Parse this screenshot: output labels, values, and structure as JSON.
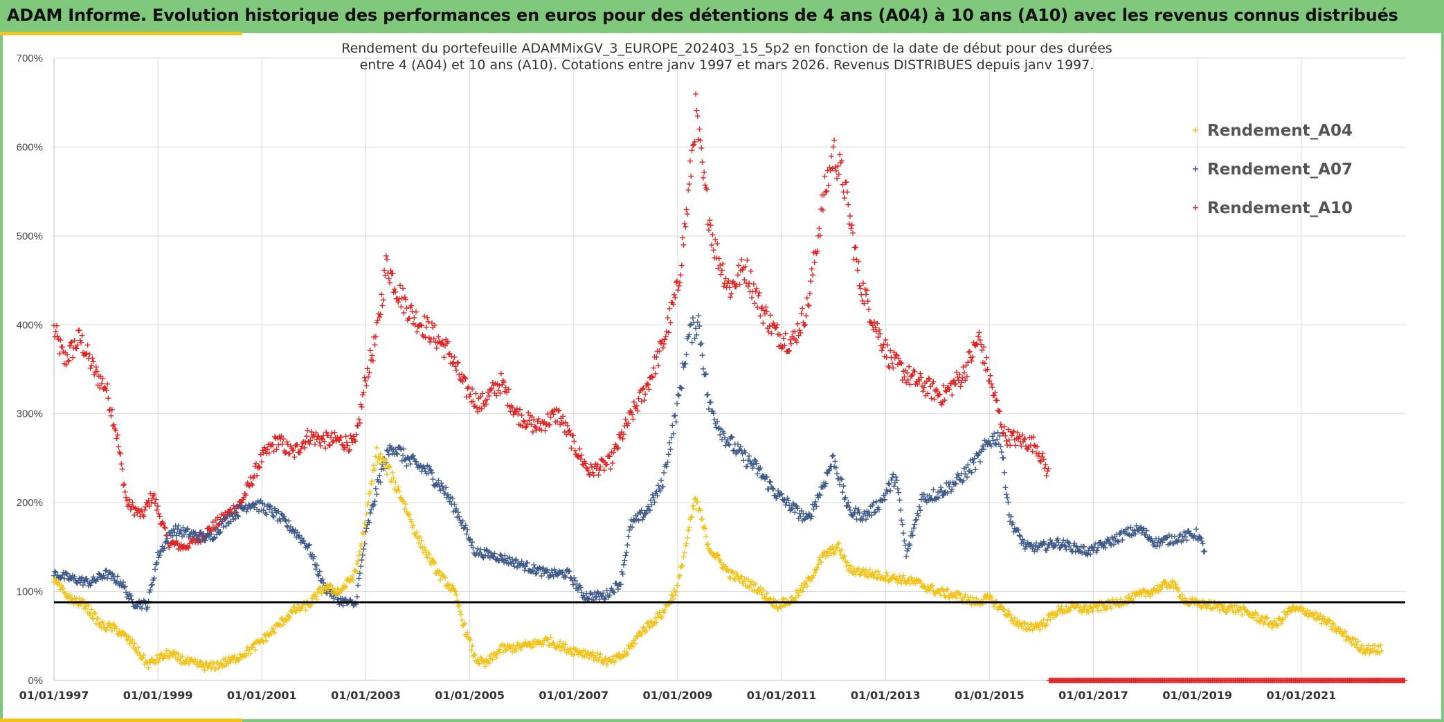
{
  "header": {
    "title": "ADAM Informe. Evolution historique des performances en euros pour des détentions de 4 ans (A04) à 10 ans (A10) avec les revenus connus distribués"
  },
  "chart_data": {
    "type": "scatter",
    "subtitle_line1": "Rendement du portefeuille ADAMMixGV_3_EUROPE_202403_15_5p2  en fonction de la date de début pour des durées",
    "subtitle_line2": "entre 4 (A04) et 10 ans (A10). Cotations entre janv 1997 et mars 2026. Revenus DISTRIBUES depuis janv 1997.",
    "x_ticks": [
      "01/01/1997",
      "01/01/1999",
      "01/01/2001",
      "01/01/2003",
      "01/01/2005",
      "01/01/2007",
      "01/01/2009",
      "01/01/2011",
      "01/01/2013",
      "01/01/2015",
      "01/01/2017",
      "01/01/2019",
      "01/01/2021"
    ],
    "x_range": [
      1997.0,
      2023.0
    ],
    "y_ticks": [
      "0%",
      "100%",
      "200%",
      "300%",
      "400%",
      "500%",
      "600%",
      "700%"
    ],
    "ylim": [
      0,
      700
    ],
    "reference_line_y": 88,
    "grid": "on",
    "legend_position": "top-right",
    "series": [
      {
        "name": "Rendement_A04",
        "color": "#f2c31b",
        "end_year": 2022.55,
        "points": [
          [
            1997.0,
            112
          ],
          [
            1997.3,
            92
          ],
          [
            1997.6,
            85
          ],
          [
            1997.9,
            62
          ],
          [
            1998.2,
            58
          ],
          [
            1998.5,
            42
          ],
          [
            1998.8,
            18
          ],
          [
            1999.2,
            30
          ],
          [
            1999.6,
            20
          ],
          [
            2000.0,
            15
          ],
          [
            2000.4,
            22
          ],
          [
            2000.8,
            35
          ],
          [
            2001.2,
            55
          ],
          [
            2001.6,
            78
          ],
          [
            2001.9,
            85
          ],
          [
            2002.2,
            105
          ],
          [
            2002.5,
            100
          ],
          [
            2002.8,
            120
          ],
          [
            2003.0,
            180
          ],
          [
            2003.2,
            255
          ],
          [
            2003.4,
            240
          ],
          [
            2003.7,
            205
          ],
          [
            2004.0,
            160
          ],
          [
            2004.4,
            120
          ],
          [
            2004.7,
            100
          ],
          [
            2004.9,
            60
          ],
          [
            2005.1,
            25
          ],
          [
            2005.3,
            18
          ],
          [
            2005.6,
            35
          ],
          [
            2006.0,
            38
          ],
          [
            2006.5,
            45
          ],
          [
            2006.9,
            35
          ],
          [
            2007.3,
            30
          ],
          [
            2007.7,
            20
          ],
          [
            2008.0,
            30
          ],
          [
            2008.3,
            55
          ],
          [
            2008.7,
            75
          ],
          [
            2009.0,
            105
          ],
          [
            2009.2,
            165
          ],
          [
            2009.35,
            205
          ],
          [
            2009.6,
            150
          ],
          [
            2010.0,
            120
          ],
          [
            2010.5,
            105
          ],
          [
            2010.9,
            85
          ],
          [
            2011.2,
            90
          ],
          [
            2011.5,
            110
          ],
          [
            2011.8,
            140
          ],
          [
            2012.1,
            150
          ],
          [
            2012.3,
            125
          ],
          [
            2012.7,
            120
          ],
          [
            2013.2,
            115
          ],
          [
            2013.6,
            110
          ],
          [
            2014.0,
            100
          ],
          [
            2014.4,
            95
          ],
          [
            2014.7,
            88
          ],
          [
            2015.0,
            92
          ],
          [
            2015.3,
            78
          ],
          [
            2015.6,
            60
          ],
          [
            2016.0,
            62
          ],
          [
            2016.3,
            78
          ],
          [
            2016.6,
            82
          ],
          [
            2016.9,
            80
          ],
          [
            2017.3,
            85
          ],
          [
            2017.7,
            92
          ],
          [
            2018.1,
            100
          ],
          [
            2018.5,
            110
          ],
          [
            2018.8,
            88
          ],
          [
            2019.2,
            85
          ],
          [
            2019.5,
            82
          ],
          [
            2019.8,
            80
          ],
          [
            2020.2,
            70
          ],
          [
            2020.5,
            62
          ],
          [
            2020.8,
            80
          ],
          [
            2021.1,
            78
          ],
          [
            2021.5,
            65
          ],
          [
            2021.9,
            48
          ],
          [
            2022.2,
            35
          ],
          [
            2022.55,
            35
          ]
        ]
      },
      {
        "name": "Rendement_A07",
        "color": "#3e5a8a",
        "end_year": 2019.15,
        "points": [
          [
            1997.0,
            120
          ],
          [
            1997.3,
            115
          ],
          [
            1997.7,
            110
          ],
          [
            1998.0,
            120
          ],
          [
            1998.3,
            110
          ],
          [
            1998.5,
            88
          ],
          [
            1998.8,
            85
          ],
          [
            1999.0,
            140
          ],
          [
            1999.3,
            170
          ],
          [
            1999.6,
            165
          ],
          [
            2000.0,
            160
          ],
          [
            2000.4,
            185
          ],
          [
            2000.8,
            200
          ],
          [
            2001.2,
            190
          ],
          [
            2001.6,
            170
          ],
          [
            2001.9,
            150
          ],
          [
            2002.2,
            105
          ],
          [
            2002.5,
            90
          ],
          [
            2002.8,
            85
          ],
          [
            2003.0,
            165
          ],
          [
            2003.3,
            235
          ],
          [
            2003.5,
            265
          ],
          [
            2003.8,
            248
          ],
          [
            2004.2,
            235
          ],
          [
            2004.5,
            215
          ],
          [
            2004.8,
            185
          ],
          [
            2005.1,
            145
          ],
          [
            2005.5,
            140
          ],
          [
            2006.0,
            130
          ],
          [
            2006.5,
            120
          ],
          [
            2006.9,
            120
          ],
          [
            2007.2,
            95
          ],
          [
            2007.6,
            95
          ],
          [
            2007.9,
            110
          ],
          [
            2008.1,
            175
          ],
          [
            2008.4,
            190
          ],
          [
            2008.7,
            220
          ],
          [
            2009.0,
            310
          ],
          [
            2009.2,
            385
          ],
          [
            2009.4,
            405
          ],
          [
            2009.6,
            310
          ],
          [
            2009.9,
            275
          ],
          [
            2010.2,
            255
          ],
          [
            2010.5,
            240
          ],
          [
            2010.9,
            210
          ],
          [
            2011.2,
            195
          ],
          [
            2011.5,
            180
          ],
          [
            2011.8,
            220
          ],
          [
            2012.0,
            250
          ],
          [
            2012.3,
            190
          ],
          [
            2012.6,
            185
          ],
          [
            2012.9,
            200
          ],
          [
            2013.2,
            230
          ],
          [
            2013.4,
            140
          ],
          [
            2013.7,
            205
          ],
          [
            2014.0,
            210
          ],
          [
            2014.4,
            225
          ],
          [
            2014.8,
            250
          ],
          [
            2015.0,
            270
          ],
          [
            2015.2,
            275
          ],
          [
            2015.4,
            180
          ],
          [
            2015.7,
            150
          ],
          [
            2016.0,
            150
          ],
          [
            2016.3,
            155
          ],
          [
            2016.6,
            150
          ],
          [
            2016.9,
            145
          ],
          [
            2017.3,
            155
          ],
          [
            2017.6,
            165
          ],
          [
            2017.9,
            170
          ],
          [
            2018.2,
            155
          ],
          [
            2018.6,
            160
          ],
          [
            2019.0,
            165
          ],
          [
            2019.15,
            145
          ]
        ]
      },
      {
        "name": "Rendement_A10",
        "color": "#e32222",
        "end_year": 2016.15,
        "points": [
          [
            1997.0,
            395
          ],
          [
            1997.2,
            360
          ],
          [
            1997.5,
            385
          ],
          [
            1997.8,
            345
          ],
          [
            1998.0,
            330
          ],
          [
            1998.2,
            280
          ],
          [
            1998.4,
            200
          ],
          [
            1998.7,
            185
          ],
          [
            1998.9,
            210
          ],
          [
            1999.2,
            155
          ],
          [
            1999.5,
            150
          ],
          [
            1999.8,
            160
          ],
          [
            2000.2,
            180
          ],
          [
            2000.6,
            200
          ],
          [
            2001.0,
            250
          ],
          [
            2001.3,
            270
          ],
          [
            2001.6,
            255
          ],
          [
            2001.9,
            275
          ],
          [
            2002.2,
            270
          ],
          [
            2002.5,
            270
          ],
          [
            2002.8,
            265
          ],
          [
            2003.0,
            340
          ],
          [
            2003.2,
            385
          ],
          [
            2003.4,
            470
          ],
          [
            2003.6,
            440
          ],
          [
            2003.9,
            410
          ],
          [
            2004.2,
            395
          ],
          [
            2004.6,
            370
          ],
          [
            2004.9,
            330
          ],
          [
            2005.2,
            310
          ],
          [
            2005.6,
            335
          ],
          [
            2005.9,
            300
          ],
          [
            2006.3,
            285
          ],
          [
            2006.7,
            300
          ],
          [
            2007.0,
            265
          ],
          [
            2007.3,
            235
          ],
          [
            2007.7,
            245
          ],
          [
            2008.0,
            285
          ],
          [
            2008.4,
            330
          ],
          [
            2008.7,
            375
          ],
          [
            2009.0,
            440
          ],
          [
            2009.2,
            540
          ],
          [
            2009.35,
            640
          ],
          [
            2009.5,
            560
          ],
          [
            2009.7,
            490
          ],
          [
            2010.0,
            440
          ],
          [
            2010.3,
            465
          ],
          [
            2010.6,
            420
          ],
          [
            2010.9,
            390
          ],
          [
            2011.2,
            380
          ],
          [
            2011.5,
            420
          ],
          [
            2011.8,
            540
          ],
          [
            2012.0,
            595
          ],
          [
            2012.2,
            560
          ],
          [
            2012.5,
            450
          ],
          [
            2012.8,
            400
          ],
          [
            2013.1,
            360
          ],
          [
            2013.5,
            340
          ],
          [
            2013.8,
            330
          ],
          [
            2014.1,
            320
          ],
          [
            2014.5,
            345
          ],
          [
            2014.8,
            385
          ],
          [
            2015.0,
            340
          ],
          [
            2015.3,
            275
          ],
          [
            2015.6,
            270
          ],
          [
            2015.9,
            265
          ],
          [
            2016.15,
            230
          ]
        ]
      }
    ]
  }
}
